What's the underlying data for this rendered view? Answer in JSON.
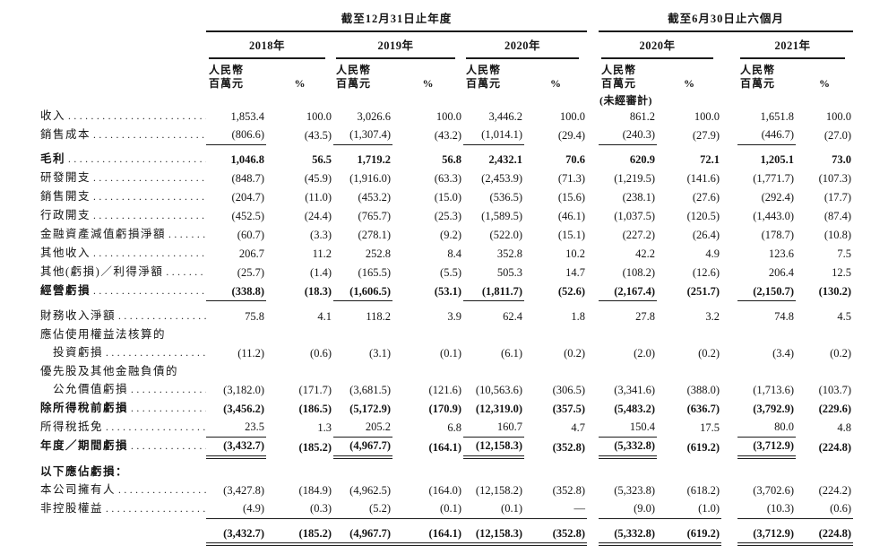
{
  "table": {
    "groups": [
      {
        "title": "截至12月31日止年度",
        "years": [
          "2018年",
          "2019年",
          "2020年"
        ]
      },
      {
        "title": "截至6月30日止六個月",
        "years": [
          "2020年",
          "2021年"
        ],
        "note": "(未經審計)"
      }
    ],
    "units": {
      "currency": "人民幣",
      "unit": "百萬元",
      "percent": "%"
    },
    "rows": [
      {
        "label": "收入",
        "values": [
          "1,853.4",
          "100.0",
          "3,026.6",
          "100.0",
          "3,446.2",
          "100.0",
          "861.2",
          "100.0",
          "1,651.8",
          "100.0"
        ]
      },
      {
        "label": "銷售成本",
        "values": [
          "(806.6)",
          "(43.5)",
          "(1,307.4)",
          "(43.2)",
          "(1,014.1)",
          "(29.4)",
          "(240.3)",
          "(27.9)",
          "(446.7)",
          "(27.0)"
        ],
        "rule": "amt"
      },
      {
        "label": "毛利",
        "bold": true,
        "gap": true,
        "values": [
          "1,046.8",
          "56.5",
          "1,719.2",
          "56.8",
          "2,432.1",
          "70.6",
          "620.9",
          "72.1",
          "1,205.1",
          "73.0"
        ]
      },
      {
        "label": "研發開支",
        "values": [
          "(848.7)",
          "(45.9)",
          "(1,916.0)",
          "(63.3)",
          "(2,453.9)",
          "(71.3)",
          "(1,219.5)",
          "(141.6)",
          "(1,771.7)",
          "(107.3)"
        ]
      },
      {
        "label": "銷售開支",
        "values": [
          "(204.7)",
          "(11.0)",
          "(453.2)",
          "(15.0)",
          "(536.5)",
          "(15.6)",
          "(238.1)",
          "(27.6)",
          "(292.4)",
          "(17.7)"
        ]
      },
      {
        "label": "行政開支",
        "values": [
          "(452.5)",
          "(24.4)",
          "(765.7)",
          "(25.3)",
          "(1,589.5)",
          "(46.1)",
          "(1,037.5)",
          "(120.5)",
          "(1,443.0)",
          "(87.4)"
        ]
      },
      {
        "label": "金融資產減值虧損淨額",
        "values": [
          "(60.7)",
          "(3.3)",
          "(278.1)",
          "(9.2)",
          "(522.0)",
          "(15.1)",
          "(227.2)",
          "(26.4)",
          "(178.7)",
          "(10.8)"
        ]
      },
      {
        "label": "其他收入",
        "values": [
          "206.7",
          "11.2",
          "252.8",
          "8.4",
          "352.8",
          "10.2",
          "42.2",
          "4.9",
          "123.6",
          "7.5"
        ]
      },
      {
        "label": "其他(虧損)／利得淨額",
        "values": [
          "(25.7)",
          "(1.4)",
          "(165.5)",
          "(5.5)",
          "505.3",
          "14.7",
          "(108.2)",
          "(12.6)",
          "206.4",
          "12.5"
        ]
      },
      {
        "label": "經營虧損",
        "bold": true,
        "values": [
          "(338.8)",
          "(18.3)",
          "(1,606.5)",
          "(53.1)",
          "(1,811.7)",
          "(52.6)",
          "(2,167.4)",
          "(251.7)",
          "(2,150.7)",
          "(130.2)"
        ],
        "rule": "amt"
      },
      {
        "label": "財務收入淨額",
        "gap": true,
        "values": [
          "75.8",
          "4.1",
          "118.2",
          "3.9",
          "62.4",
          "1.8",
          "27.8",
          "3.2",
          "74.8",
          "4.5"
        ]
      },
      {
        "label": "應佔使用權益法核算的",
        "no_leaders": true
      },
      {
        "label": "投資虧損",
        "indent": true,
        "values": [
          "(11.2)",
          "(0.6)",
          "(3.1)",
          "(0.1)",
          "(6.1)",
          "(0.2)",
          "(2.0)",
          "(0.2)",
          "(3.4)",
          "(0.2)"
        ]
      },
      {
        "label": "優先股及其他金融負債的",
        "no_leaders": true
      },
      {
        "label": "公允價值虧損",
        "indent": true,
        "values": [
          "(3,182.0)",
          "(171.7)",
          "(3,681.5)",
          "(121.6)",
          "(10,563.6)",
          "(306.5)",
          "(3,341.6)",
          "(388.0)",
          "(1,713.6)",
          "(103.7)"
        ]
      },
      {
        "label": "除所得稅前虧損",
        "bold": true,
        "values": [
          "(3,456.2)",
          "(186.5)",
          "(5,172.9)",
          "(170.9)",
          "(12,319.0)",
          "(357.5)",
          "(5,483.2)",
          "(636.7)",
          "(3,792.9)",
          "(229.6)"
        ]
      },
      {
        "label": "所得稅抵免",
        "values": [
          "23.5",
          "1.3",
          "205.2",
          "6.8",
          "160.7",
          "4.7",
          "150.4",
          "17.5",
          "80.0",
          "4.8"
        ],
        "rule": "amt"
      },
      {
        "label": "年度／期間虧損",
        "bold": true,
        "values": [
          "(3,432.7)",
          "(185.2)",
          "(4,967.7)",
          "(164.1)",
          "(12,158.3)",
          "(352.8)",
          "(5,332.8)",
          "(619.2)",
          "(3,712.9)",
          "(224.8)"
        ],
        "rule": "amt",
        "double_rule": true
      },
      {
        "label": "以下應佔虧損：",
        "bold": true,
        "no_leaders": true,
        "gap": true
      },
      {
        "label": "本公司擁有人",
        "values": [
          "(3,427.8)",
          "(184.9)",
          "(4,962.5)",
          "(164.0)",
          "(12,158.2)",
          "(352.8)",
          "(5,323.8)",
          "(618.2)",
          "(3,702.6)",
          "(224.2)"
        ]
      },
      {
        "label": "非控股權益",
        "values": [
          "(4.9)",
          "(0.3)",
          "(5.2)",
          "(0.1)",
          "(0.1)",
          "—",
          "(9.0)",
          "(1.0)",
          "(10.3)",
          "(0.6)"
        ],
        "rule": "all"
      },
      {
        "label": "",
        "bold": true,
        "no_leaders": true,
        "gap": true,
        "values": [
          "(3,432.7)",
          "(185.2)",
          "(4,967.7)",
          "(164.1)",
          "(12,158.3)",
          "(352.8)",
          "(5,332.8)",
          "(619.2)",
          "(3,712.9)",
          "(224.8)"
        ],
        "rule": "all",
        "double_rule": true
      }
    ]
  }
}
